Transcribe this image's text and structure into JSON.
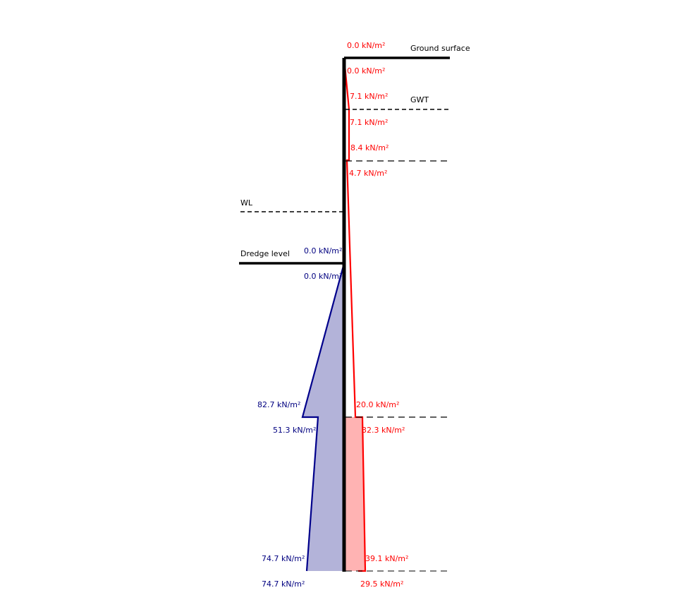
{
  "colors": {
    "active": "#ff0000",
    "active_fill": "#ffb3b3",
    "passive": "#00008b",
    "passive_fill": "#b3b3d9",
    "wall": "#000000"
  },
  "levels": {
    "ground_surface": "Ground surface",
    "gwt": "GWT",
    "wl": "WL",
    "dredge": "Dredge level"
  },
  "active_labels": {
    "top_ground": "0.0 kN/m²",
    "below_ground": "0.0 kN/m²",
    "above_gwt": "7.1 kN/m²",
    "below_gwt": "7.1 kN/m²",
    "above_layer1": "8.4 kN/m²",
    "below_layer1": "4.7 kN/m²",
    "above_layer2": "20.0 kN/m²",
    "below_layer2": "32.3 kN/m²",
    "above_toe": "39.1 kN/m²",
    "below_toe": "29.5 kN/m²"
  },
  "passive_labels": {
    "above_dredge": "0.0 kN/m²",
    "below_dredge": "0.0 kN/m²",
    "above_layer2": "82.7 kN/m²",
    "below_layer2": "51.3 kN/m²",
    "above_toe": "74.7 kN/m²",
    "below_toe": "74.7 kN/m²"
  },
  "diagram_data": {
    "active_pressure_points": [
      {
        "level": "ground_surface",
        "value": 0.0
      },
      {
        "level": "gwt",
        "value": 7.1
      },
      {
        "level": "layer1_top",
        "value": 8.4
      },
      {
        "level": "layer1_bottom",
        "value": 4.7
      },
      {
        "level": "layer2_top",
        "value": 20.0
      },
      {
        "level": "layer2_bottom",
        "value": 32.3
      },
      {
        "level": "toe_top",
        "value": 39.1
      },
      {
        "level": "toe_bottom",
        "value": 29.5
      }
    ],
    "passive_pressure_points": [
      {
        "level": "dredge",
        "value": 0.0
      },
      {
        "level": "layer2_top",
        "value": 82.7
      },
      {
        "level": "layer2_bottom",
        "value": 51.3
      },
      {
        "level": "toe",
        "value": 74.7
      }
    ]
  }
}
